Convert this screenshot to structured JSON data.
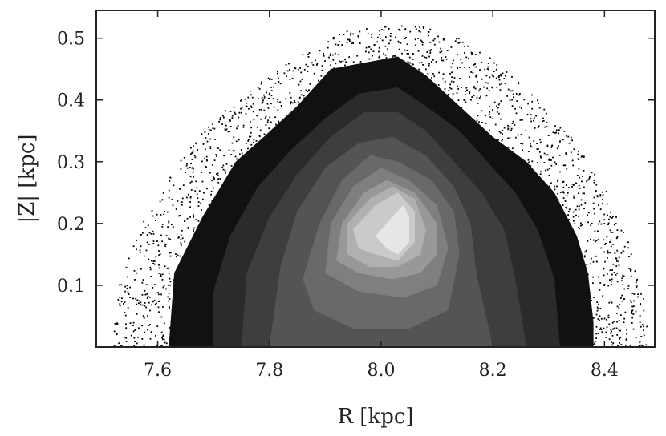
{
  "chart_data": {
    "type": "scatter",
    "subtype": "filled-contour-density-with-outlier-points",
    "title": "",
    "xlabel": "R [kpc]",
    "ylabel": "|Z| [kpc]",
    "xlim": [
      7.49,
      8.49
    ],
    "ylim": [
      0.0,
      0.545
    ],
    "xticks": [
      7.6,
      7.8,
      8.0,
      8.2,
      8.4
    ],
    "xtick_labels": [
      "7.6",
      "7.8",
      "8.0",
      "8.2",
      "8.4"
    ],
    "yticks": [
      0.1,
      0.2,
      0.3,
      0.4,
      0.5
    ],
    "ytick_labels": [
      "0.1",
      "0.2",
      "0.3",
      "0.4",
      "0.5"
    ],
    "grid": false,
    "legend": "none",
    "colormap": "greys (black = lowest density, near-white = highest)",
    "contour_levels": [
      {
        "level": 1,
        "color": "#111111",
        "polygon": [
          [
            7.62,
            0.0
          ],
          [
            7.63,
            0.12
          ],
          [
            7.68,
            0.21
          ],
          [
            7.74,
            0.3
          ],
          [
            7.79,
            0.34
          ],
          [
            7.85,
            0.39
          ],
          [
            7.91,
            0.45
          ],
          [
            7.97,
            0.46
          ],
          [
            8.03,
            0.47
          ],
          [
            8.08,
            0.44
          ],
          [
            8.14,
            0.39
          ],
          [
            8.2,
            0.34
          ],
          [
            8.26,
            0.3
          ],
          [
            8.31,
            0.25
          ],
          [
            8.35,
            0.18
          ],
          [
            8.37,
            0.12
          ],
          [
            8.38,
            0.04
          ],
          [
            8.38,
            0.0
          ]
        ]
      },
      {
        "level": 2,
        "color": "#2b2b2b",
        "polygon": [
          [
            7.7,
            0.0
          ],
          [
            7.7,
            0.09
          ],
          [
            7.73,
            0.18
          ],
          [
            7.78,
            0.26
          ],
          [
            7.84,
            0.32
          ],
          [
            7.9,
            0.37
          ],
          [
            7.96,
            0.41
          ],
          [
            8.03,
            0.42
          ],
          [
            8.08,
            0.39
          ],
          [
            8.14,
            0.35
          ],
          [
            8.19,
            0.3
          ],
          [
            8.24,
            0.25
          ],
          [
            8.28,
            0.19
          ],
          [
            8.31,
            0.11
          ],
          [
            8.32,
            0.0
          ]
        ]
      },
      {
        "level": 3,
        "color": "#3e3e3e",
        "polygon": [
          [
            7.75,
            0.0
          ],
          [
            7.76,
            0.12
          ],
          [
            7.8,
            0.21
          ],
          [
            7.85,
            0.28
          ],
          [
            7.91,
            0.34
          ],
          [
            7.97,
            0.38
          ],
          [
            8.03,
            0.38
          ],
          [
            8.08,
            0.35
          ],
          [
            8.13,
            0.3
          ],
          [
            8.18,
            0.25
          ],
          [
            8.22,
            0.19
          ],
          [
            8.24,
            0.11
          ],
          [
            8.26,
            0.0
          ]
        ]
      },
      {
        "level": 4,
        "color": "#545454",
        "polygon": [
          [
            7.8,
            0.0
          ],
          [
            7.82,
            0.13
          ],
          [
            7.85,
            0.22
          ],
          [
            7.9,
            0.29
          ],
          [
            7.96,
            0.33
          ],
          [
            8.02,
            0.34
          ],
          [
            8.08,
            0.31
          ],
          [
            8.13,
            0.26
          ],
          [
            8.16,
            0.2
          ],
          [
            8.17,
            0.12
          ],
          [
            8.2,
            0.0
          ]
        ]
      },
      {
        "level": 5,
        "color": "#696969",
        "polygon": [
          [
            7.86,
            0.11
          ],
          [
            7.89,
            0.2
          ],
          [
            7.93,
            0.27
          ],
          [
            7.98,
            0.31
          ],
          [
            8.03,
            0.3
          ],
          [
            8.09,
            0.27
          ],
          [
            8.13,
            0.22
          ],
          [
            8.14,
            0.15
          ],
          [
            8.12,
            0.06
          ],
          [
            8.05,
            0.03
          ],
          [
            7.95,
            0.03
          ],
          [
            7.88,
            0.06
          ]
        ]
      },
      {
        "level": 6,
        "color": "#7f7f7f",
        "polygon": [
          [
            7.9,
            0.12
          ],
          [
            7.91,
            0.2
          ],
          [
            7.95,
            0.26
          ],
          [
            8.0,
            0.29
          ],
          [
            8.05,
            0.27
          ],
          [
            8.1,
            0.23
          ],
          [
            8.12,
            0.16
          ],
          [
            8.1,
            0.1
          ],
          [
            8.04,
            0.08
          ],
          [
            7.96,
            0.09
          ]
        ]
      },
      {
        "level": 7,
        "color": "#989898",
        "polygon": [
          [
            7.92,
            0.14
          ],
          [
            7.93,
            0.2
          ],
          [
            7.97,
            0.25
          ],
          [
            8.01,
            0.27
          ],
          [
            8.06,
            0.25
          ],
          [
            8.1,
            0.2
          ],
          [
            8.1,
            0.15
          ],
          [
            8.07,
            0.12
          ],
          [
            8.02,
            0.11
          ],
          [
            7.96,
            0.12
          ]
        ]
      },
      {
        "level": 8,
        "color": "#b0b0b0",
        "polygon": [
          [
            7.94,
            0.15
          ],
          [
            7.94,
            0.2
          ],
          [
            7.98,
            0.24
          ],
          [
            8.02,
            0.26
          ],
          [
            8.06,
            0.24
          ],
          [
            8.08,
            0.19
          ],
          [
            8.07,
            0.15
          ],
          [
            8.03,
            0.13
          ],
          [
            7.98,
            0.13
          ]
        ]
      },
      {
        "level": 9,
        "color": "#cacaca",
        "polygon": [
          [
            7.96,
            0.16
          ],
          [
            7.95,
            0.19
          ],
          [
            7.99,
            0.23
          ],
          [
            8.03,
            0.25
          ],
          [
            8.06,
            0.22
          ],
          [
            8.06,
            0.17
          ],
          [
            8.03,
            0.14
          ],
          [
            7.99,
            0.15
          ]
        ]
      },
      {
        "level": 10,
        "color": "#e6e6e6",
        "polygon": [
          [
            7.99,
            0.18
          ],
          [
            8.02,
            0.21
          ],
          [
            8.04,
            0.23
          ],
          [
            8.05,
            0.21
          ],
          [
            8.05,
            0.17
          ],
          [
            8.03,
            0.15
          ],
          [
            8.01,
            0.16
          ]
        ]
      }
    ],
    "outlier_points_region": {
      "inner_boundary": "outermost contour (level 1)",
      "outer_boundary": [
        [
          7.52,
          0.0
        ],
        [
          7.53,
          0.1
        ],
        [
          7.56,
          0.18
        ],
        [
          7.61,
          0.26
        ],
        [
          7.66,
          0.33
        ],
        [
          7.73,
          0.39
        ],
        [
          7.8,
          0.44
        ],
        [
          7.87,
          0.48
        ],
        [
          7.93,
          0.51
        ],
        [
          8.0,
          0.52
        ],
        [
          8.07,
          0.52
        ],
        [
          8.14,
          0.5
        ],
        [
          8.21,
          0.46
        ],
        [
          8.28,
          0.4
        ],
        [
          8.34,
          0.34
        ],
        [
          8.4,
          0.26
        ],
        [
          8.44,
          0.18
        ],
        [
          8.47,
          0.09
        ],
        [
          8.48,
          0.0
        ]
      ],
      "approx_count": 1400,
      "color": "#000000"
    }
  }
}
